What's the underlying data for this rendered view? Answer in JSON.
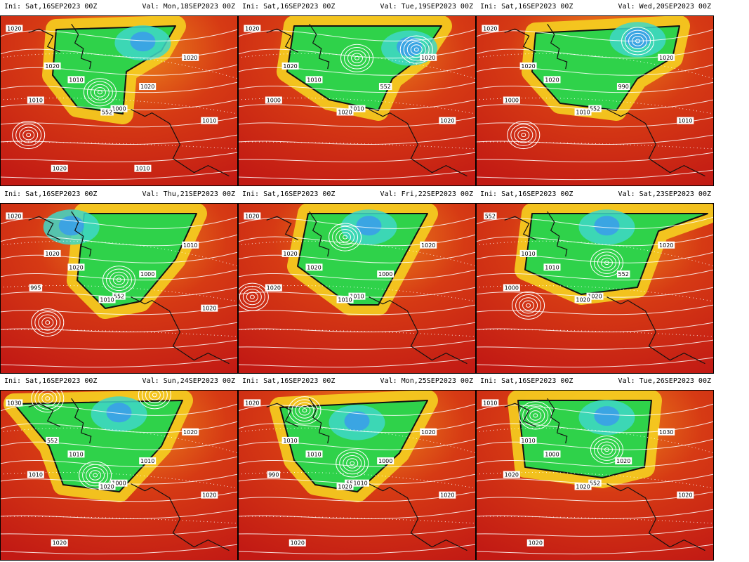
{
  "panels": [
    {
      "ini": "Ini:  Sat,16SEP2023  00Z",
      "val": "Val:  Mon,18SEP2023  00Z",
      "labels": [
        "1020",
        "1020",
        "1010",
        "1010",
        "1020",
        "1000",
        "552",
        "1020",
        "1010",
        "1020",
        "1010"
      ],
      "lows": [
        [
          0.42,
          0.45
        ],
        [
          0.12,
          0.7
        ]
      ]
    },
    {
      "ini": "Ini:  Sat,16SEP2023  00Z",
      "val": "Val:  Tue,19SEP2023  00Z",
      "labels": [
        "1020",
        "1020",
        "1010",
        "1000",
        "552",
        "1010",
        "1020",
        "1020",
        "1020"
      ],
      "lows": [
        [
          0.5,
          0.25
        ],
        [
          0.75,
          0.2
        ]
      ]
    },
    {
      "ini": "Ini:  Sat,16SEP2023  00Z",
      "val": "Val:  Wed,20SEP2023  00Z",
      "labels": [
        "1020",
        "1020",
        "1020",
        "1000",
        "990",
        "552",
        "1010",
        "1020",
        "1010"
      ],
      "lows": [
        [
          0.68,
          0.15
        ],
        [
          0.2,
          0.7
        ]
      ]
    },
    {
      "ini": "Ini:  Sat,16SEP2023  00Z",
      "val": "Val:  Thu,21SEP2023  00Z",
      "labels": [
        "1020",
        "1020",
        "1020",
        "995",
        "1000",
        "552",
        "1010",
        "1010",
        "1020"
      ],
      "lows": [
        [
          0.5,
          0.45
        ],
        [
          0.2,
          0.7
        ]
      ]
    },
    {
      "ini": "Ini:  Sat,16SEP2023  00Z",
      "val": "Val:  Fri,22SEP2023  00Z",
      "labels": [
        "1020",
        "1020",
        "1020",
        "1020",
        "1000",
        "1010",
        "1010",
        "1020"
      ],
      "lows": [
        [
          0.45,
          0.2
        ],
        [
          0.06,
          0.55
        ]
      ]
    },
    {
      "ini": "Ini:  Sat,16SEP2023  00Z",
      "val": "Val:  Sat,23SEP2023  00Z",
      "labels": [
        "552",
        "1010",
        "1010",
        "1000",
        "552",
        "1020",
        "1020",
        "1020"
      ],
      "lows": [
        [
          0.22,
          0.6
        ],
        [
          0.55,
          0.35
        ]
      ]
    },
    {
      "ini": "Ini:  Sat,16SEP2023  00Z",
      "val": "Val:  Sun,24SEP2023  00Z",
      "labels": [
        "1030",
        "552",
        "1010",
        "1010",
        "1010",
        "1000",
        "1020",
        "1020",
        "1020",
        "1020"
      ],
      "lows": [
        [
          0.4,
          0.5
        ],
        [
          0.2,
          0.05
        ],
        [
          0.65,
          0.03
        ]
      ]
    },
    {
      "ini": "Ini:  Sat,16SEP2023  00Z",
      "val": "Val:  Mon,25SEP2023  00Z",
      "labels": [
        "1020",
        "1010",
        "1010",
        "990",
        "1000",
        "551010",
        "1020",
        "1020",
        "1020",
        "1020"
      ],
      "lows": [
        [
          0.48,
          0.43
        ],
        [
          0.28,
          0.12
        ]
      ]
    },
    {
      "ini": "Ini:  Sat,16SEP2023  00Z",
      "val": "Val:  Tue,26SEP2023  00Z",
      "labels": [
        "1010",
        "1010",
        "1000",
        "1020",
        "1020",
        "552",
        "1020",
        "1030",
        "1020",
        "1020"
      ],
      "lows": [
        [
          0.55,
          0.35
        ],
        [
          0.25,
          0.15
        ]
      ]
    }
  ],
  "colors": {
    "deep_red": "#c21a14",
    "red": "#d63a14",
    "orange": "#ee8a1c",
    "yellow": "#f6d020",
    "green": "#2fd24a",
    "cyan": "#3ed8c8",
    "blue": "#3aa0e8",
    "contour": "#ffffff",
    "coast": "#111111"
  }
}
